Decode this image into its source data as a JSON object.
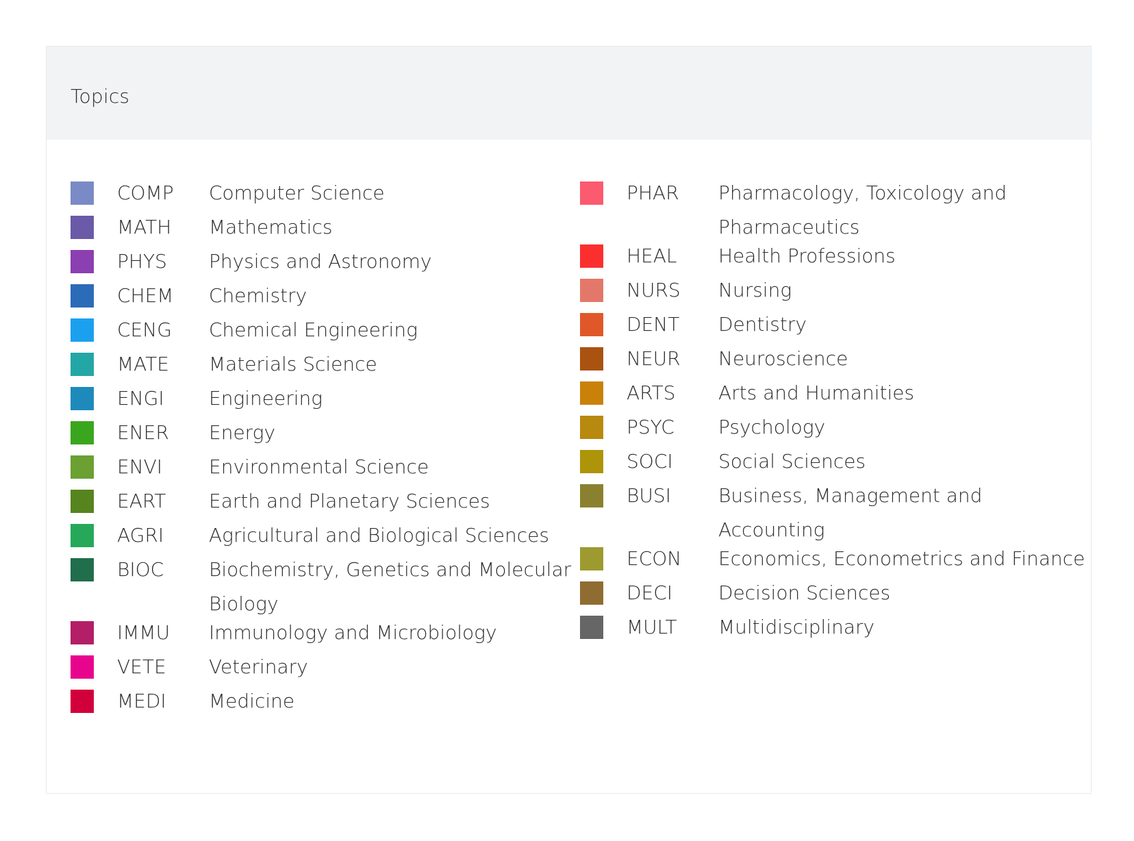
{
  "title": "Topics",
  "left": [
    {
      "code": "COMP",
      "name": "Computer Science",
      "color": "#7a8ac6"
    },
    {
      "code": "MATH",
      "name": "Mathematics",
      "color": "#6a5aa7"
    },
    {
      "code": "PHYS",
      "name": "Physics and Astronomy",
      "color": "#8b3fb0"
    },
    {
      "code": "CHEM",
      "name": "Chemistry",
      "color": "#2c6bb8"
    },
    {
      "code": "CENG",
      "name": "Chemical Engineering",
      "color": "#1ba0ef"
    },
    {
      "code": "MATE",
      "name": "Materials Science",
      "color": "#23a6a6"
    },
    {
      "code": "ENGI",
      "name": "Engineering",
      "color": "#1d8abb"
    },
    {
      "code": "ENER",
      "name": "Energy",
      "color": "#3aa61e"
    },
    {
      "code": "ENVI",
      "name": "Environmental Science",
      "color": "#6aa132"
    },
    {
      "code": "EART",
      "name": "Earth and Planetary Sciences",
      "color": "#56841f"
    },
    {
      "code": "AGRI",
      "name": "Agricultural and Biological Sciences",
      "color": "#25a85a"
    },
    {
      "code": "BIOC",
      "name": "Biochemistry, Genetics and Molecular Biology",
      "color": "#206e4b"
    },
    {
      "code": "IMMU",
      "name": "Immunology and Microbiology",
      "color": "#b21f66"
    },
    {
      "code": "VETE",
      "name": "Veterinary",
      "color": "#e8058e"
    },
    {
      "code": "MEDI",
      "name": "Medicine",
      "color": "#d2003a"
    }
  ],
  "right": [
    {
      "code": "PHAR",
      "name": "Pharmacology, Toxicology and Pharmaceutics",
      "color": "#fc5a6e"
    },
    {
      "code": "HEAL",
      "name": "Health Professions",
      "color": "#fc2f2f"
    },
    {
      "code": "NURS",
      "name": "Nursing",
      "color": "#e3786a"
    },
    {
      "code": "DENT",
      "name": "Dentistry",
      "color": "#e0582a"
    },
    {
      "code": "NEUR",
      "name": "Neuroscience",
      "color": "#aa5210"
    },
    {
      "code": "ARTS",
      "name": "Arts and Humanities",
      "color": "#c98109"
    },
    {
      "code": "PSYC",
      "name": "Psychology",
      "color": "#b8890f"
    },
    {
      "code": "SOCI",
      "name": "Social Sciences",
      "color": "#ad9408"
    },
    {
      "code": "BUSI",
      "name": "Business, Management and Accounting",
      "color": "#8a8130"
    },
    {
      "code": "ECON",
      "name": "Economics, Econometrics and Finance",
      "color": "#9d9a30"
    },
    {
      "code": "DECI",
      "name": "Decision Sciences",
      "color": "#8f6d32"
    },
    {
      "code": "MULT",
      "name": "Multidisciplinary",
      "color": "#666666"
    }
  ]
}
